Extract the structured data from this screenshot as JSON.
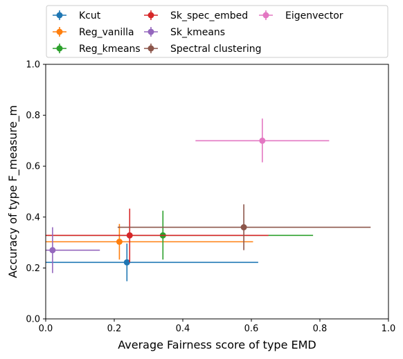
{
  "chart_data": {
    "type": "scatter",
    "xlabel": "Average Fairness score of type EMD",
    "ylabel": "Accuracy of type F_measure_m",
    "xlim": [
      0,
      1
    ],
    "ylim": [
      0,
      1
    ],
    "xticks": [
      "0.0",
      "0.2",
      "0.4",
      "0.6",
      "0.8",
      "1.0"
    ],
    "yticks": [
      "0.0",
      "0.2",
      "0.4",
      "0.6",
      "0.8",
      "1.0"
    ],
    "grid": false,
    "legend_position": "top, outside plot, 3 columns",
    "series": [
      {
        "name": "Kcut",
        "color": "#1f77b4",
        "x": 0.237,
        "y": 0.222,
        "xerr": [
          0.0,
          0.62
        ],
        "yerr": [
          0.148,
          0.296
        ]
      },
      {
        "name": "Reg_vanilla",
        "color": "#ff7f0e",
        "x": 0.215,
        "y": 0.303,
        "xerr": [
          0.0,
          0.605
        ],
        "yerr": [
          0.233,
          0.373
        ]
      },
      {
        "name": "Reg_kmeans",
        "color": "#2ca02c",
        "x": 0.342,
        "y": 0.328,
        "xerr": [
          0.0,
          0.78
        ],
        "yerr": [
          0.233,
          0.425
        ]
      },
      {
        "name": "Sk_spec_embed",
        "color": "#d62728",
        "x": 0.245,
        "y": 0.328,
        "xerr": [
          0.0,
          0.65
        ],
        "yerr": [
          0.222,
          0.433
        ]
      },
      {
        "name": "Sk_kmeans",
        "color": "#9467bd",
        "x": 0.02,
        "y": 0.27,
        "xerr": [
          0.0,
          0.158
        ],
        "yerr": [
          0.18,
          0.36
        ]
      },
      {
        "name": "Spectral clustering",
        "color": "#8c564b",
        "x": 0.578,
        "y": 0.36,
        "xerr": [
          0.21,
          0.948
        ],
        "yerr": [
          0.27,
          0.45
        ]
      },
      {
        "name": "Eigenvector",
        "color": "#e377c2",
        "x": 0.632,
        "y": 0.7,
        "xerr": [
          0.437,
          0.827
        ],
        "yerr": [
          0.615,
          0.787
        ]
      }
    ]
  }
}
